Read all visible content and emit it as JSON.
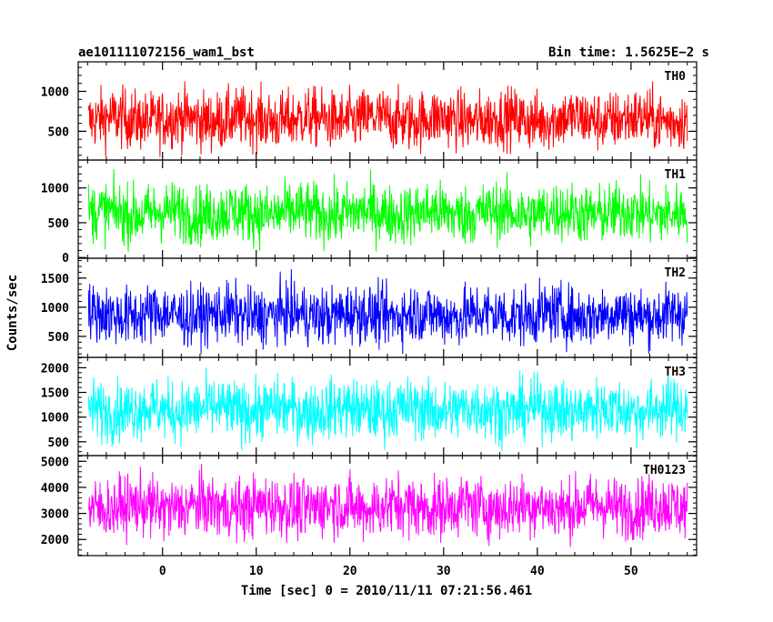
{
  "header": {
    "title_left": "ae101111072156_wam1_bst",
    "title_right": "Bin time: 1.5625E−2 s"
  },
  "chart_data": {
    "type": "line",
    "xlabel": "Time [sec] 0 = 2010/11/11 07:21:56.461",
    "ylabel": "Counts/sec",
    "xlim": [
      -9,
      57
    ],
    "x_ticks": [
      0,
      10,
      20,
      30,
      40,
      50
    ],
    "x_minor_step": 2,
    "x_data_range": [
      -7.9,
      56.0
    ],
    "grid": false,
    "series": [
      {
        "name": "TH0",
        "color": "#ff0000",
        "ylim": [
          140,
          1370
        ],
        "y_ticks": [
          500,
          1000
        ],
        "y_minor_step": 100,
        "mean": 650,
        "min": 180,
        "max": 1370
      },
      {
        "name": "TH1",
        "color": "#00ff00",
        "ylim": [
          -10,
          1400
        ],
        "y_ticks": [
          0,
          500,
          1000
        ],
        "y_minor_step": 100,
        "mean": 640,
        "min": 20,
        "max": 1380
      },
      {
        "name": "TH2",
        "color": "#0000ff",
        "ylim": [
          140,
          1840
        ],
        "y_ticks": [
          500,
          1000,
          1500
        ],
        "y_minor_step": 100,
        "mean": 870,
        "min": 200,
        "max": 1820
      },
      {
        "name": "TH3",
        "color": "#00ffff",
        "ylim": [
          220,
          2210
        ],
        "y_ticks": [
          500,
          1000,
          1500,
          2000
        ],
        "y_minor_step": 100,
        "mean": 1150,
        "min": 260,
        "max": 2200
      },
      {
        "name": "TH0123",
        "color": "#ff00ff",
        "ylim": [
          1380,
          5220
        ],
        "y_ticks": [
          2000,
          3000,
          4000,
          5000
        ],
        "y_minor_step": 200,
        "mean": 3250,
        "min": 1400,
        "max": 5150
      }
    ]
  }
}
